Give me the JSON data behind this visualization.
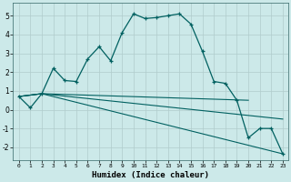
{
  "xlabel": "Humidex (Indice chaleur)",
  "background_color": "#cce9e9",
  "grid_color": "#b0cccc",
  "line_color": "#006060",
  "xlim": [
    -0.5,
    23.5
  ],
  "ylim": [
    -2.7,
    5.7
  ],
  "xticks": [
    0,
    1,
    2,
    3,
    4,
    5,
    6,
    7,
    8,
    9,
    10,
    11,
    12,
    13,
    14,
    15,
    16,
    17,
    18,
    19,
    20,
    21,
    22,
    23
  ],
  "yticks": [
    -2,
    -1,
    0,
    1,
    2,
    3,
    4,
    5
  ],
  "line1_x": [
    0,
    1,
    2,
    3,
    4,
    5,
    6,
    7,
    8,
    9,
    10,
    11,
    12,
    13,
    14,
    15,
    16,
    17,
    18,
    19,
    20,
    21,
    22,
    23
  ],
  "line1_y": [
    0.7,
    0.1,
    0.85,
    2.2,
    1.55,
    1.5,
    2.7,
    3.35,
    2.6,
    4.1,
    5.1,
    4.85,
    4.9,
    5.0,
    5.1,
    4.55,
    3.1,
    1.5,
    1.4,
    0.5,
    -1.5,
    -1.0,
    -1.0,
    -2.35
  ],
  "line2_x": [
    0,
    2,
    20
  ],
  "line2_y": [
    0.7,
    0.85,
    0.5
  ],
  "line3_x": [
    0,
    2,
    23
  ],
  "line3_y": [
    0.7,
    0.85,
    -0.5
  ],
  "line4_x": [
    0,
    2,
    23
  ],
  "line4_y": [
    0.7,
    0.85,
    -2.35
  ]
}
